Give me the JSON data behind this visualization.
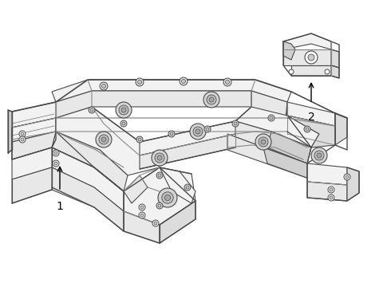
{
  "background_color": "#ffffff",
  "line_color": "#4a4a4a",
  "light_line_color": "#888888",
  "label1": "1",
  "label2": "2",
  "fig_width": 4.9,
  "fig_height": 3.6,
  "dpi": 100
}
